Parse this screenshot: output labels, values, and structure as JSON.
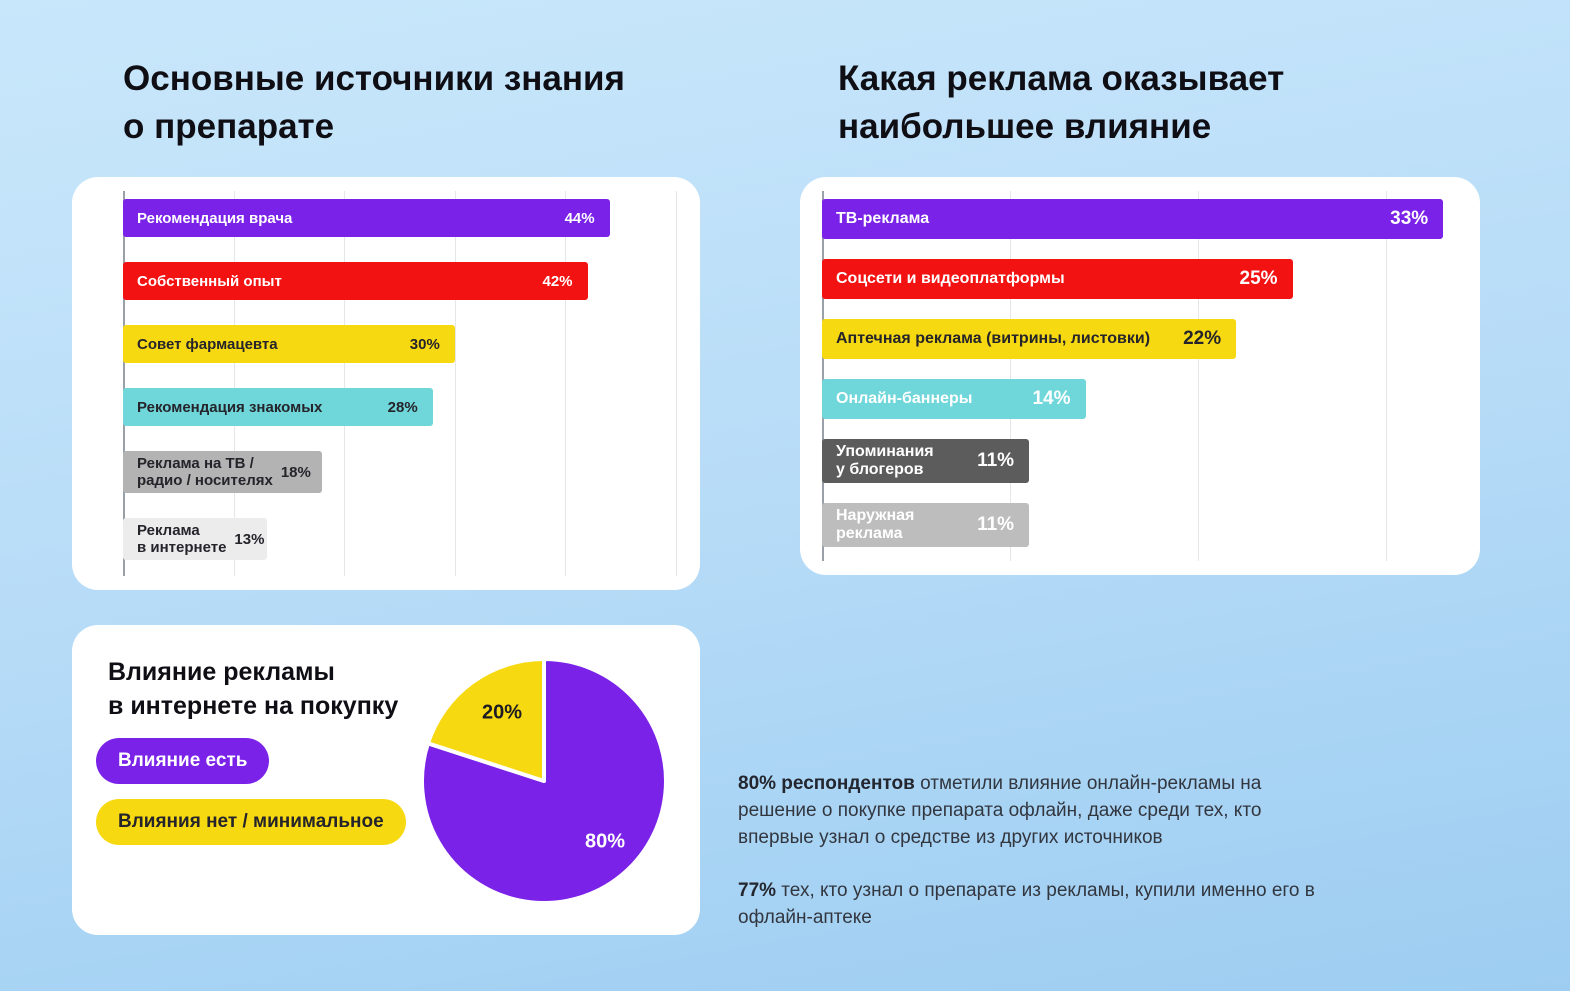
{
  "titles": {
    "left_line1": "Основные источники знания",
    "left_line2": "о препарате",
    "right_line1": "Какая реклама оказывает",
    "right_line2": "наибольшее влияние"
  },
  "chart_data": [
    {
      "type": "bar",
      "orientation": "horizontal",
      "title": "Основные источники знания о препарате",
      "unit": "%",
      "xlim": [
        0,
        50
      ],
      "grid": true,
      "bars": [
        {
          "label": "Рекомендация врача",
          "value": 44,
          "pct_label": "44%",
          "color": "#7a22e8"
        },
        {
          "label": "Собственный опыт",
          "value": 42,
          "pct_label": "42%",
          "color": "#f31212"
        },
        {
          "label": "Совет фармацевта",
          "value": 30,
          "pct_label": "30%",
          "color": "#f7d912"
        },
        {
          "label": "Рекомендация знакомых",
          "value": 28,
          "pct_label": "28%",
          "color": "#6fd6da"
        },
        {
          "label": "Реклама на ТВ / радио / носителях",
          "label_line1": "Реклама на ТВ /",
          "label_line2": "радио / носителях",
          "value": 18,
          "pct_label": "18%",
          "color": "#b3b3b3"
        },
        {
          "label": "Реклама в интернете",
          "label_line1": "Реклама",
          "label_line2": "в интернете",
          "value": 13,
          "pct_label": "13%",
          "color": "#ececec"
        }
      ]
    },
    {
      "type": "bar",
      "orientation": "horizontal",
      "title": "Какая реклама оказывает наибольшее влияние",
      "unit": "%",
      "xlim": [
        0,
        34
      ],
      "grid": true,
      "bars": [
        {
          "label": "ТВ-реклама",
          "value": 33,
          "pct_label": "33%",
          "color": "#7a22e8"
        },
        {
          "label": "Соцсети и видеоплатформы",
          "value": 25,
          "pct_label": "25%",
          "color": "#f31212"
        },
        {
          "label": "Аптечная реклама (витрины, листовки)",
          "value": 22,
          "pct_label": "22%",
          "color": "#f7d912"
        },
        {
          "label": "Онлайн-баннеры",
          "value": 14,
          "pct_label": "14%",
          "color": "#6fd6da"
        },
        {
          "label": "Упоминания у блогеров",
          "label_line1": "Упоминания",
          "label_line2": "у блогеров",
          "value": 11,
          "pct_label": "11%",
          "color": "#5c5c5c"
        },
        {
          "label": "Наружная реклама",
          "label_line1": "Наружная",
          "label_line2": "реклама",
          "value": 11,
          "pct_label": "11%",
          "color": "#bdbdbd"
        }
      ]
    },
    {
      "type": "pie",
      "title": "Влияние рекламы в интернете на покупку",
      "title_line1": "Влияние рекламы",
      "title_line2": "в интернете на покупку",
      "legend_position": "left",
      "slices": [
        {
          "label": "Влияние есть",
          "value": 80,
          "pct_label": "80%",
          "color": "#7a22e8"
        },
        {
          "label": "Влияния нет / минимальное",
          "value": 20,
          "pct_label": "20%",
          "color": "#f7d912"
        }
      ]
    }
  ],
  "notes": {
    "p1_bold": "80% респондентов",
    "p1_text": " отметили влияние онлайн-рекламы на решение о покупке препарата офлайн, даже среди тех, кто впервые узнал о средстве из других источников",
    "p2_bold": "77%",
    "p2_text": " тех, кто узнал о препарате из рекламы, купили именно его в офлайн-аптеке"
  },
  "colors": {
    "purple": "#7a22e8",
    "red": "#f31212",
    "yellow": "#f7d912",
    "teal": "#6fd6da",
    "dark_gray": "#5c5c5c",
    "light_gray": "#bdbdbd",
    "background_top": "#c9e7fb",
    "background_bottom": "#9dcdf1"
  }
}
